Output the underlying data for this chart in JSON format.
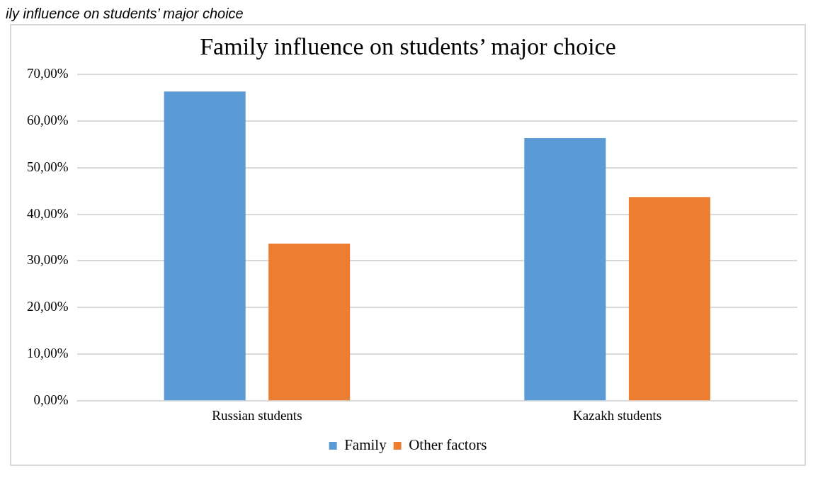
{
  "chart_data": {
    "type": "bar",
    "title": "Family influence on students’ major choice",
    "annotations": [
      "ily influence on students’ major choice"
    ],
    "categories": [
      "Russian students",
      "Kazakh students"
    ],
    "series": [
      {
        "name": "Family",
        "color": "#5b9bd5",
        "values": [
          66.3,
          56.3
        ]
      },
      {
        "name": "Other factors",
        "color": "#ed7d31",
        "values": [
          33.7,
          43.7
        ]
      }
    ],
    "ylim": [
      0,
      70
    ],
    "yticks": [
      {
        "value": 0,
        "label": "0,00%"
      },
      {
        "value": 10,
        "label": "10,00%"
      },
      {
        "value": 20,
        "label": "20,00%"
      },
      {
        "value": 30,
        "label": "30,00%"
      },
      {
        "value": 40,
        "label": "40,00%"
      },
      {
        "value": 50,
        "label": "50,00%"
      },
      {
        "value": 60,
        "label": "60,00%"
      },
      {
        "value": 70,
        "label": "70,00%"
      }
    ],
    "grid": "y",
    "legend": "bottom"
  }
}
